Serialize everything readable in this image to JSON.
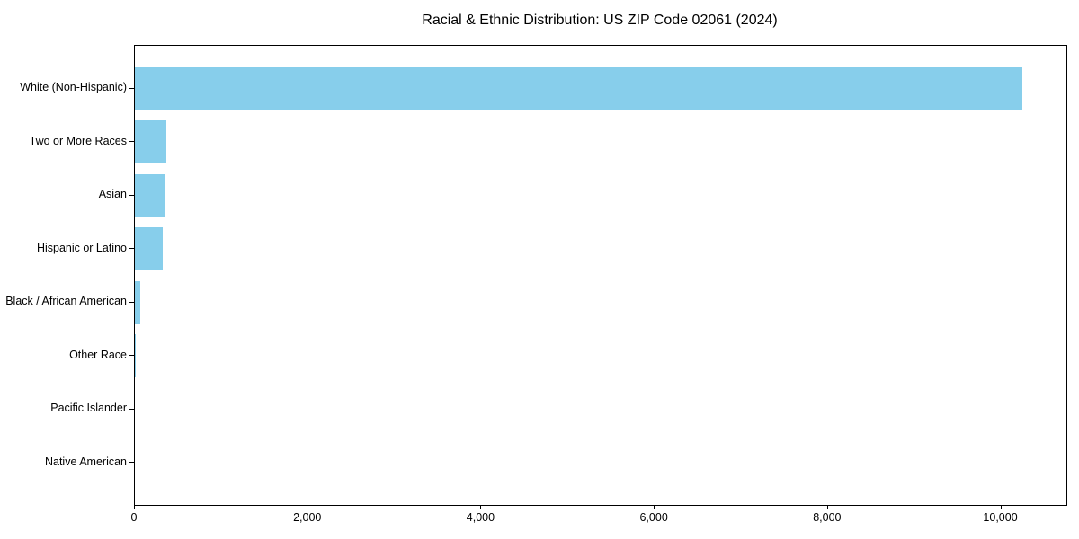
{
  "chart_data": {
    "type": "bar",
    "orientation": "horizontal",
    "title": "Racial & Ethnic Distribution: US ZIP Code 02061 (2024)",
    "categories": [
      "White (Non-Hispanic)",
      "Two or More Races",
      "Asian",
      "Hispanic or Latino",
      "Black / African American",
      "Other Race",
      "Pacific Islander",
      "Native American"
    ],
    "values": [
      10240,
      365,
      355,
      320,
      60,
      8,
      0,
      0
    ],
    "xlabel": "",
    "ylabel": "",
    "xlim": [
      0,
      10752
    ],
    "xticks": [
      0,
      2000,
      4000,
      6000,
      8000,
      10000
    ],
    "xtick_labels": [
      "0",
      "2,000",
      "4,000",
      "6,000",
      "8,000",
      "10,000"
    ],
    "grid": false,
    "legend": null,
    "bar_color": "#87CEEB",
    "axis_color": "#000000"
  }
}
